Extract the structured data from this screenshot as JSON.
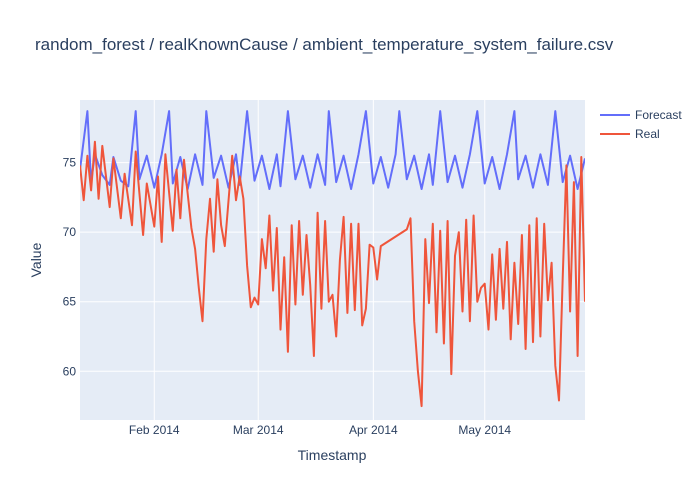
{
  "chart_data": {
    "type": "line",
    "title": "random_forest / realKnownCause / ambient_temperature_system_failure.csv",
    "xlabel": "Timestamp",
    "ylabel": "Value",
    "xlim": [
      "2014-01-12",
      "2014-05-28"
    ],
    "ylim": [
      56.5,
      79.5
    ],
    "x_ticks": [
      {
        "date": "2014-02-01",
        "label": "Feb 2014"
      },
      {
        "date": "2014-03-01",
        "label": "Mar 2014"
      },
      {
        "date": "2014-04-01",
        "label": "Apr 2014"
      },
      {
        "date": "2014-05-01",
        "label": "May 2014"
      }
    ],
    "y_ticks": [
      60,
      65,
      70,
      75
    ],
    "grid": true,
    "legend_position": "top-right",
    "series": [
      {
        "name": "Forecast",
        "color": "#636efa",
        "points": [
          [
            "2014-01-12",
            74.5
          ],
          [
            "2014-01-14",
            78.7
          ],
          [
            "2014-01-15",
            73.6
          ],
          [
            "2014-01-16",
            75.6
          ],
          [
            "2014-01-18",
            74.1
          ],
          [
            "2014-01-20",
            73.4
          ],
          [
            "2014-01-21",
            75.4
          ],
          [
            "2014-01-23",
            73.7
          ],
          [
            "2014-01-25",
            73.3
          ],
          [
            "2014-01-27",
            78.7
          ],
          [
            "2014-01-28",
            73.8
          ],
          [
            "2014-01-30",
            75.5
          ],
          [
            "2014-02-01",
            73.2
          ],
          [
            "2014-02-03",
            75.6
          ],
          [
            "2014-02-05",
            78.7
          ],
          [
            "2014-02-06",
            73.5
          ],
          [
            "2014-02-08",
            75.4
          ],
          [
            "2014-02-10",
            73.1
          ],
          [
            "2014-02-12",
            75.6
          ],
          [
            "2014-02-14",
            73.4
          ],
          [
            "2014-02-15",
            78.7
          ],
          [
            "2014-02-17",
            73.9
          ],
          [
            "2014-02-19",
            75.5
          ],
          [
            "2014-02-21",
            73.2
          ],
          [
            "2014-02-23",
            75.6
          ],
          [
            "2014-02-24",
            73.4
          ],
          [
            "2014-02-26",
            78.7
          ],
          [
            "2014-02-28",
            73.7
          ],
          [
            "2014-03-02",
            75.5
          ],
          [
            "2014-03-04",
            73.1
          ],
          [
            "2014-03-06",
            75.6
          ],
          [
            "2014-03-07",
            73.3
          ],
          [
            "2014-03-09",
            78.7
          ],
          [
            "2014-03-11",
            73.8
          ],
          [
            "2014-03-13",
            75.5
          ],
          [
            "2014-03-15",
            73.2
          ],
          [
            "2014-03-17",
            75.6
          ],
          [
            "2014-03-19",
            73.4
          ],
          [
            "2014-03-20",
            78.7
          ],
          [
            "2014-03-22",
            73.6
          ],
          [
            "2014-03-24",
            75.5
          ],
          [
            "2014-03-26",
            73.1
          ],
          [
            "2014-03-28",
            75.6
          ],
          [
            "2014-03-30",
            78.7
          ],
          [
            "2014-04-01",
            73.5
          ],
          [
            "2014-04-03",
            75.4
          ],
          [
            "2014-04-05",
            73.2
          ],
          [
            "2014-04-07",
            75.6
          ],
          [
            "2014-04-08",
            78.7
          ],
          [
            "2014-04-10",
            73.8
          ],
          [
            "2014-04-12",
            75.5
          ],
          [
            "2014-04-14",
            73.1
          ],
          [
            "2014-04-16",
            75.6
          ],
          [
            "2014-04-17",
            73.4
          ],
          [
            "2014-04-19",
            78.7
          ],
          [
            "2014-04-21",
            73.6
          ],
          [
            "2014-04-23",
            75.5
          ],
          [
            "2014-04-25",
            73.2
          ],
          [
            "2014-04-27",
            75.6
          ],
          [
            "2014-04-29",
            78.7
          ],
          [
            "2014-05-01",
            73.5
          ],
          [
            "2014-05-03",
            75.4
          ],
          [
            "2014-05-05",
            73.1
          ],
          [
            "2014-05-07",
            75.6
          ],
          [
            "2014-05-09",
            78.7
          ],
          [
            "2014-05-10",
            73.8
          ],
          [
            "2014-05-12",
            75.5
          ],
          [
            "2014-05-14",
            73.2
          ],
          [
            "2014-05-16",
            75.6
          ],
          [
            "2014-05-18",
            73.4
          ],
          [
            "2014-05-20",
            78.7
          ],
          [
            "2014-05-22",
            73.6
          ],
          [
            "2014-05-24",
            75.5
          ],
          [
            "2014-05-26",
            73.1
          ],
          [
            "2014-05-28",
            75.3
          ]
        ]
      },
      {
        "name": "Real",
        "color": "#ef553b",
        "points": [
          [
            "2014-01-12",
            74.8
          ],
          [
            "2014-01-13",
            72.3
          ],
          [
            "2014-01-14",
            75.5
          ],
          [
            "2014-01-15",
            73.0
          ],
          [
            "2014-01-16",
            76.5
          ],
          [
            "2014-01-17",
            72.4
          ],
          [
            "2014-01-18",
            76.2
          ],
          [
            "2014-01-20",
            71.8
          ],
          [
            "2014-01-21",
            75.3
          ],
          [
            "2014-01-23",
            71.0
          ],
          [
            "2014-01-24",
            74.2
          ],
          [
            "2014-01-26",
            70.5
          ],
          [
            "2014-01-27",
            75.8
          ],
          [
            "2014-01-29",
            69.8
          ],
          [
            "2014-01-30",
            73.5
          ],
          [
            "2014-02-01",
            70.4
          ],
          [
            "2014-02-02",
            74.0
          ],
          [
            "2014-02-03",
            69.3
          ],
          [
            "2014-02-04",
            75.6
          ],
          [
            "2014-02-06",
            70.1
          ],
          [
            "2014-02-07",
            74.5
          ],
          [
            "2014-02-08",
            71.0
          ],
          [
            "2014-02-09",
            75.2
          ],
          [
            "2014-02-11",
            70.3
          ],
          [
            "2014-02-12",
            68.8
          ],
          [
            "2014-02-13",
            66.0
          ],
          [
            "2014-02-14",
            63.6
          ],
          [
            "2014-02-15",
            69.5
          ],
          [
            "2014-02-16",
            72.4
          ],
          [
            "2014-02-17",
            68.6
          ],
          [
            "2014-02-18",
            73.8
          ],
          [
            "2014-02-19",
            70.5
          ],
          [
            "2014-02-20",
            69.0
          ],
          [
            "2014-02-22",
            75.5
          ],
          [
            "2014-02-23",
            72.3
          ],
          [
            "2014-02-24",
            74.0
          ],
          [
            "2014-02-25",
            72.4
          ],
          [
            "2014-02-26",
            67.6
          ],
          [
            "2014-02-27",
            64.6
          ],
          [
            "2014-02-28",
            65.3
          ],
          [
            "2014-03-01",
            64.8
          ],
          [
            "2014-03-02",
            69.5
          ],
          [
            "2014-03-03",
            67.4
          ],
          [
            "2014-03-04",
            71.2
          ],
          [
            "2014-03-05",
            65.8
          ],
          [
            "2014-03-06",
            70.3
          ],
          [
            "2014-03-07",
            63.0
          ],
          [
            "2014-03-08",
            68.2
          ],
          [
            "2014-03-09",
            61.4
          ],
          [
            "2014-03-10",
            70.5
          ],
          [
            "2014-03-11",
            64.8
          ],
          [
            "2014-03-12",
            70.8
          ],
          [
            "2014-03-13",
            65.5
          ],
          [
            "2014-03-14",
            69.8
          ],
          [
            "2014-03-15",
            66.2
          ],
          [
            "2014-03-16",
            61.1
          ],
          [
            "2014-03-17",
            71.4
          ],
          [
            "2014-03-18",
            64.5
          ],
          [
            "2014-03-19",
            70.8
          ],
          [
            "2014-03-20",
            65.0
          ],
          [
            "2014-03-21",
            65.5
          ],
          [
            "2014-03-22",
            62.5
          ],
          [
            "2014-03-23",
            68.0
          ],
          [
            "2014-03-24",
            71.1
          ],
          [
            "2014-03-25",
            64.2
          ],
          [
            "2014-03-26",
            70.6
          ],
          [
            "2014-03-27",
            64.4
          ],
          [
            "2014-03-28",
            70.6
          ],
          [
            "2014-03-29",
            63.3
          ],
          [
            "2014-03-30",
            64.5
          ],
          [
            "2014-03-31",
            69.1
          ],
          [
            "2014-04-01",
            68.9
          ],
          [
            "2014-04-02",
            66.6
          ],
          [
            "2014-04-03",
            69.0
          ],
          [
            "2014-04-10",
            70.2
          ],
          [
            "2014-04-11",
            71.0
          ],
          [
            "2014-04-12",
            63.6
          ],
          [
            "2014-04-13",
            60.0
          ],
          [
            "2014-04-14",
            57.5
          ],
          [
            "2014-04-15",
            69.5
          ],
          [
            "2014-04-16",
            64.9
          ],
          [
            "2014-04-17",
            70.6
          ],
          [
            "2014-04-18",
            62.8
          ],
          [
            "2014-04-19",
            70.1
          ],
          [
            "2014-04-20",
            62.0
          ],
          [
            "2014-04-21",
            70.8
          ],
          [
            "2014-04-22",
            59.8
          ],
          [
            "2014-04-23",
            68.3
          ],
          [
            "2014-04-24",
            70.0
          ],
          [
            "2014-04-25",
            64.3
          ],
          [
            "2014-04-26",
            70.9
          ],
          [
            "2014-04-27",
            63.6
          ],
          [
            "2014-04-28",
            71.2
          ],
          [
            "2014-04-29",
            65.0
          ],
          [
            "2014-04-30",
            66.0
          ],
          [
            "2014-05-01",
            66.3
          ],
          [
            "2014-05-02",
            63.0
          ],
          [
            "2014-05-03",
            68.4
          ],
          [
            "2014-05-04",
            63.7
          ],
          [
            "2014-05-05",
            68.8
          ],
          [
            "2014-05-06",
            64.5
          ],
          [
            "2014-05-07",
            69.3
          ],
          [
            "2014-05-08",
            62.3
          ],
          [
            "2014-05-09",
            67.8
          ],
          [
            "2014-05-10",
            63.4
          ],
          [
            "2014-05-11",
            69.8
          ],
          [
            "2014-05-12",
            61.6
          ],
          [
            "2014-05-13",
            70.5
          ],
          [
            "2014-05-14",
            62.1
          ],
          [
            "2014-05-15",
            71.0
          ],
          [
            "2014-05-16",
            62.5
          ],
          [
            "2014-05-17",
            70.6
          ],
          [
            "2014-05-18",
            65.1
          ],
          [
            "2014-05-19",
            67.8
          ],
          [
            "2014-05-20",
            60.4
          ],
          [
            "2014-05-21",
            57.9
          ],
          [
            "2014-05-22",
            66.7
          ],
          [
            "2014-05-23",
            74.8
          ],
          [
            "2014-05-24",
            64.3
          ],
          [
            "2014-05-25",
            73.6
          ],
          [
            "2014-05-26",
            61.1
          ],
          [
            "2014-05-27",
            75.4
          ],
          [
            "2014-05-28",
            65.0
          ]
        ]
      }
    ]
  }
}
